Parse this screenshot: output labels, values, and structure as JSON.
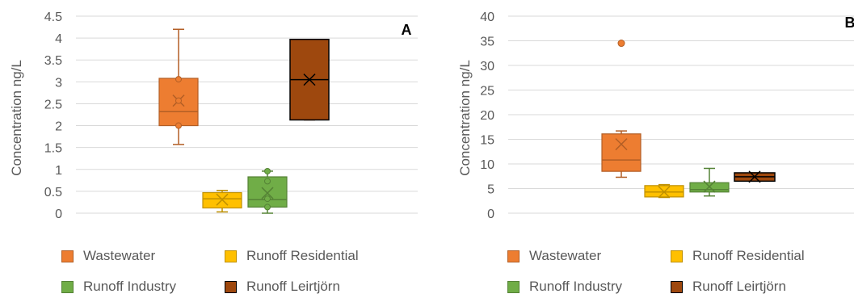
{
  "chart_data": [
    {
      "type": "box",
      "panel_label": "A",
      "ylabel": "Concentration ng/L",
      "ylim": [
        0,
        4.5
      ],
      "yticks": [
        "0",
        "0.5",
        "1",
        "1.5",
        "2",
        "2.5",
        "3",
        "3.5",
        "4",
        "4.5"
      ],
      "grid": true,
      "legend_position": "bottom",
      "series": [
        {
          "name": "Wastewater",
          "color": "#ED7D31",
          "whisker_low": 1.57,
          "q1": 2.0,
          "median": 2.32,
          "q3": 3.08,
          "whisker_high": 4.2,
          "mean": 2.57,
          "points": [
            2.0,
            2.57,
            3.06
          ]
        },
        {
          "name": "Runoff Residential",
          "color": "#FFC000",
          "whisker_low": 0.03,
          "q1": 0.12,
          "median": 0.33,
          "q3": 0.47,
          "whisker_high": 0.52,
          "mean": 0.31,
          "points": []
        },
        {
          "name": "Runoff Industry",
          "color": "#70AD47",
          "whisker_low": 0.0,
          "q1": 0.14,
          "median": 0.31,
          "q3": 0.83,
          "whisker_high": 0.96,
          "mean": 0.46,
          "points": [
            0.14,
            0.33,
            0.73,
            0.96
          ]
        },
        {
          "name": "Runoff Leirtjörn",
          "color": "#9E480E",
          "whisker_low": 2.13,
          "q1": 2.13,
          "median": 3.05,
          "q3": 3.97,
          "whisker_high": 3.97,
          "mean": 3.05,
          "points": []
        }
      ]
    },
    {
      "type": "box",
      "panel_label": "B",
      "ylabel": "Concentration ng/L",
      "ylim": [
        0,
        40
      ],
      "yticks": [
        "0",
        "5",
        "10",
        "15",
        "20",
        "25",
        "30",
        "35",
        "40"
      ],
      "grid": true,
      "legend_position": "bottom",
      "series": [
        {
          "name": "Wastewater",
          "color": "#ED7D31",
          "whisker_low": 7.3,
          "q1": 8.5,
          "median": 10.8,
          "q3": 16.1,
          "whisker_high": 16.7,
          "mean": 14.0,
          "outliers": [
            34.5
          ]
        },
        {
          "name": "Runoff Residential",
          "color": "#FFC000",
          "whisker_low": 3.2,
          "q1": 3.3,
          "median": 4.3,
          "q3": 5.6,
          "whisker_high": 5.8,
          "mean": 4.3
        },
        {
          "name": "Runoff Industry",
          "color": "#70AD47",
          "whisker_low": 3.5,
          "q1": 4.3,
          "median": 4.8,
          "q3": 6.2,
          "whisker_high": 9.1,
          "mean": 5.4
        },
        {
          "name": "Runoff Leirtjörn",
          "color": "#9E480E",
          "whisker_low": 6.5,
          "q1": 6.5,
          "median": 7.4,
          "q3": 8.2,
          "whisker_high": 8.2,
          "mean": 7.4
        }
      ]
    }
  ]
}
